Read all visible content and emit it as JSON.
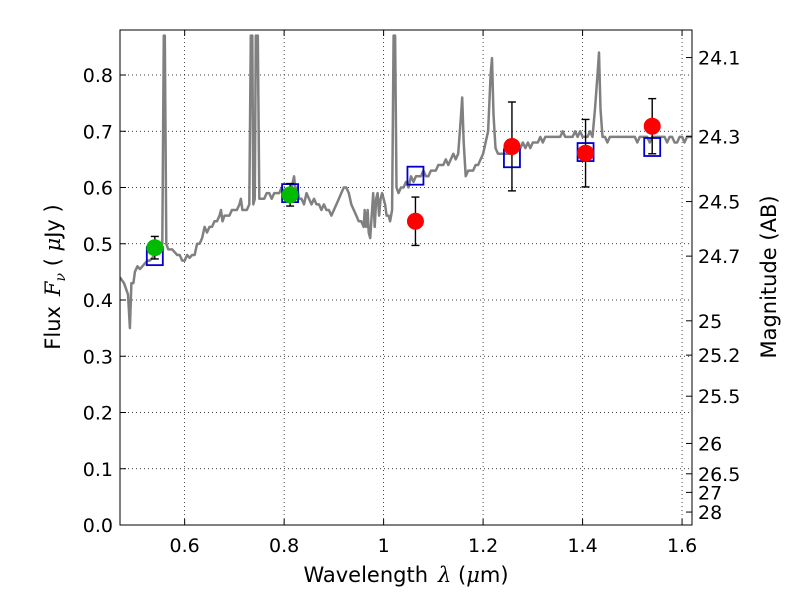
{
  "chart_data": {
    "type": "scatter",
    "xlabel_text": "Wavelength",
    "xlabel_symbol": "λ",
    "xlabel_unit_open": " (",
    "xlabel_unit_mu": "μ",
    "xlabel_unit_rest": "m)",
    "ylabel_text": "Flux",
    "ylabel_symbol": "F",
    "ylabel_sub": "ν",
    "ylabel_unit_open": " ( ",
    "ylabel_unit_mu": "μ",
    "ylabel_unit_rest": "Jy )",
    "y2label": "Magnitude (AB)",
    "xlim": [
      0.47,
      1.62
    ],
    "ylim": [
      0.0,
      0.88
    ],
    "grid": true,
    "x_ticks": [
      0.6,
      0.8,
      1.0,
      1.2,
      1.4,
      1.6
    ],
    "x_tick_labels": [
      "0.6",
      "0.8",
      "1",
      "1.2",
      "1.4",
      "1.6"
    ],
    "y_ticks": [
      0.0,
      0.1,
      0.2,
      0.3,
      0.4,
      0.5,
      0.6,
      0.7,
      0.8
    ],
    "y_tick_labels": [
      "0.0",
      "0.1",
      "0.2",
      "0.3",
      "0.4",
      "0.5",
      "0.6",
      "0.7",
      "0.8"
    ],
    "y2_ticks": [
      {
        "label": "24.1",
        "flux": 0.831
      },
      {
        "label": "24.3",
        "flux": 0.691
      },
      {
        "label": "24.5",
        "flux": 0.575
      },
      {
        "label": "24.7",
        "flux": 0.478
      },
      {
        "label": "25",
        "flux": 0.363
      },
      {
        "label": "25.2",
        "flux": 0.302
      },
      {
        "label": "25.5",
        "flux": 0.229
      },
      {
        "label": "26",
        "flux": 0.145
      },
      {
        "label": "26.5",
        "flux": 0.091
      },
      {
        "label": "27",
        "flux": 0.058
      },
      {
        "label": "28",
        "flux": 0.023
      }
    ],
    "series": [
      {
        "name": "model-spectrum",
        "kind": "line",
        "color": "#808080",
        "points": [
          [
            0.47,
            0.44
          ],
          [
            0.478,
            0.43
          ],
          [
            0.482,
            0.42
          ],
          [
            0.486,
            0.41
          ],
          [
            0.49,
            0.35
          ],
          [
            0.493,
            0.43
          ],
          [
            0.497,
            0.43
          ],
          [
            0.5,
            0.45
          ],
          [
            0.505,
            0.46
          ],
          [
            0.51,
            0.455
          ],
          [
            0.515,
            0.46
          ],
          [
            0.52,
            0.465
          ],
          [
            0.525,
            0.47
          ],
          [
            0.53,
            0.47
          ],
          [
            0.535,
            0.475
          ],
          [
            0.54,
            0.48
          ],
          [
            0.545,
            0.49
          ],
          [
            0.55,
            0.49
          ],
          [
            0.555,
            0.5
          ],
          [
            0.558,
            0.87
          ],
          [
            0.56,
            0.87
          ],
          [
            0.563,
            0.5
          ],
          [
            0.567,
            0.49
          ],
          [
            0.575,
            0.49
          ],
          [
            0.585,
            0.48
          ],
          [
            0.59,
            0.48
          ],
          [
            0.595,
            0.47
          ],
          [
            0.6,
            0.47
          ],
          [
            0.605,
            0.48
          ],
          [
            0.61,
            0.475
          ],
          [
            0.615,
            0.48
          ],
          [
            0.62,
            0.48
          ],
          [
            0.625,
            0.5
          ],
          [
            0.63,
            0.5
          ],
          [
            0.635,
            0.51
          ],
          [
            0.64,
            0.53
          ],
          [
            0.645,
            0.52
          ],
          [
            0.65,
            0.53
          ],
          [
            0.655,
            0.53
          ],
          [
            0.66,
            0.54
          ],
          [
            0.665,
            0.54
          ],
          [
            0.67,
            0.55
          ],
          [
            0.673,
            0.56
          ],
          [
            0.676,
            0.54
          ],
          [
            0.68,
            0.55
          ],
          [
            0.685,
            0.55
          ],
          [
            0.69,
            0.55
          ],
          [
            0.695,
            0.56
          ],
          [
            0.7,
            0.56
          ],
          [
            0.705,
            0.56
          ],
          [
            0.71,
            0.57
          ],
          [
            0.713,
            0.58
          ],
          [
            0.716,
            0.56
          ],
          [
            0.72,
            0.56
          ],
          [
            0.725,
            0.56
          ],
          [
            0.73,
            0.57
          ],
          [
            0.733,
            0.87
          ],
          [
            0.736,
            0.87
          ],
          [
            0.738,
            0.57
          ],
          [
            0.741,
            0.58
          ],
          [
            0.743,
            0.87
          ],
          [
            0.747,
            0.87
          ],
          [
            0.75,
            0.58
          ],
          [
            0.755,
            0.58
          ],
          [
            0.76,
            0.58
          ],
          [
            0.765,
            0.59
          ],
          [
            0.77,
            0.59
          ],
          [
            0.775,
            0.58
          ],
          [
            0.78,
            0.59
          ],
          [
            0.785,
            0.59
          ],
          [
            0.79,
            0.59
          ],
          [
            0.795,
            0.6
          ],
          [
            0.8,
            0.59
          ],
          [
            0.805,
            0.58
          ],
          [
            0.81,
            0.58
          ],
          [
            0.815,
            0.6
          ],
          [
            0.82,
            0.62
          ],
          [
            0.823,
            0.59
          ],
          [
            0.826,
            0.6
          ],
          [
            0.83,
            0.58
          ],
          [
            0.835,
            0.58
          ],
          [
            0.84,
            0.57
          ],
          [
            0.845,
            0.59
          ],
          [
            0.85,
            0.58
          ],
          [
            0.855,
            0.57
          ],
          [
            0.86,
            0.58
          ],
          [
            0.865,
            0.57
          ],
          [
            0.87,
            0.57
          ],
          [
            0.875,
            0.56
          ],
          [
            0.88,
            0.57
          ],
          [
            0.885,
            0.56
          ],
          [
            0.89,
            0.56
          ],
          [
            0.895,
            0.55
          ],
          [
            0.9,
            0.56
          ],
          [
            0.905,
            0.57
          ],
          [
            0.91,
            0.58
          ],
          [
            0.915,
            0.59
          ],
          [
            0.92,
            0.6
          ],
          [
            0.925,
            0.6
          ],
          [
            0.93,
            0.59
          ],
          [
            0.935,
            0.57
          ],
          [
            0.94,
            0.56
          ],
          [
            0.945,
            0.55
          ],
          [
            0.95,
            0.54
          ],
          [
            0.955,
            0.54
          ],
          [
            0.96,
            0.53
          ],
          [
            0.962,
            0.56
          ],
          [
            0.965,
            0.53
          ],
          [
            0.968,
            0.56
          ],
          [
            0.97,
            0.52
          ],
          [
            0.973,
            0.51
          ],
          [
            0.976,
            0.55
          ],
          [
            0.979,
            0.59
          ],
          [
            0.982,
            0.53
          ],
          [
            0.985,
            0.58
          ],
          [
            0.988,
            0.59
          ],
          [
            0.991,
            0.55
          ],
          [
            0.994,
            0.58
          ],
          [
            0.997,
            0.59
          ],
          [
            1.0,
            0.58
          ],
          [
            1.003,
            0.57
          ],
          [
            1.006,
            0.55
          ],
          [
            1.01,
            0.55
          ],
          [
            1.013,
            0.54
          ],
          [
            1.017,
            0.56
          ],
          [
            1.02,
            0.87
          ],
          [
            1.023,
            0.87
          ],
          [
            1.026,
            0.6
          ],
          [
            1.03,
            0.59
          ],
          [
            1.035,
            0.6
          ],
          [
            1.04,
            0.6
          ],
          [
            1.045,
            0.61
          ],
          [
            1.05,
            0.6
          ],
          [
            1.055,
            0.62
          ],
          [
            1.06,
            0.61
          ],
          [
            1.065,
            0.62
          ],
          [
            1.07,
            0.62
          ],
          [
            1.075,
            0.62
          ],
          [
            1.08,
            0.63
          ],
          [
            1.085,
            0.62
          ],
          [
            1.09,
            0.62
          ],
          [
            1.095,
            0.63
          ],
          [
            1.1,
            0.63
          ],
          [
            1.105,
            0.63
          ],
          [
            1.11,
            0.64
          ],
          [
            1.115,
            0.64
          ],
          [
            1.12,
            0.64
          ],
          [
            1.125,
            0.65
          ],
          [
            1.13,
            0.64
          ],
          [
            1.135,
            0.65
          ],
          [
            1.14,
            0.66
          ],
          [
            1.145,
            0.65
          ],
          [
            1.15,
            0.66
          ],
          [
            1.155,
            0.72
          ],
          [
            1.158,
            0.76
          ],
          [
            1.161,
            0.68
          ],
          [
            1.165,
            0.62
          ],
          [
            1.17,
            0.63
          ],
          [
            1.175,
            0.63
          ],
          [
            1.18,
            0.63
          ],
          [
            1.185,
            0.64
          ],
          [
            1.19,
            0.64
          ],
          [
            1.195,
            0.65
          ],
          [
            1.2,
            0.66
          ],
          [
            1.205,
            0.68
          ],
          [
            1.21,
            0.7
          ],
          [
            1.215,
            0.8
          ],
          [
            1.218,
            0.83
          ],
          [
            1.221,
            0.73
          ],
          [
            1.225,
            0.67
          ],
          [
            1.23,
            0.66
          ],
          [
            1.235,
            0.66
          ],
          [
            1.24,
            0.66
          ],
          [
            1.245,
            0.66
          ],
          [
            1.25,
            0.66
          ],
          [
            1.255,
            0.66
          ],
          [
            1.26,
            0.67
          ],
          [
            1.265,
            0.67
          ],
          [
            1.27,
            0.67
          ],
          [
            1.275,
            0.67
          ],
          [
            1.28,
            0.68
          ],
          [
            1.285,
            0.67
          ],
          [
            1.29,
            0.68
          ],
          [
            1.295,
            0.67
          ],
          [
            1.3,
            0.68
          ],
          [
            1.305,
            0.68
          ],
          [
            1.31,
            0.68
          ],
          [
            1.315,
            0.69
          ],
          [
            1.32,
            0.68
          ],
          [
            1.325,
            0.69
          ],
          [
            1.33,
            0.69
          ],
          [
            1.335,
            0.69
          ],
          [
            1.34,
            0.69
          ],
          [
            1.345,
            0.69
          ],
          [
            1.35,
            0.69
          ],
          [
            1.355,
            0.69
          ],
          [
            1.36,
            0.7
          ],
          [
            1.365,
            0.69
          ],
          [
            1.37,
            0.69
          ],
          [
            1.375,
            0.69
          ],
          [
            1.38,
            0.69
          ],
          [
            1.385,
            0.7
          ],
          [
            1.39,
            0.69
          ],
          [
            1.395,
            0.7
          ],
          [
            1.4,
            0.69
          ],
          [
            1.405,
            0.69
          ],
          [
            1.41,
            0.69
          ],
          [
            1.415,
            0.7
          ],
          [
            1.42,
            0.69
          ],
          [
            1.425,
            0.74
          ],
          [
            1.43,
            0.8
          ],
          [
            1.433,
            0.84
          ],
          [
            1.436,
            0.74
          ],
          [
            1.44,
            0.69
          ],
          [
            1.445,
            0.69
          ],
          [
            1.45,
            0.68
          ],
          [
            1.455,
            0.69
          ],
          [
            1.46,
            0.69
          ],
          [
            1.465,
            0.69
          ],
          [
            1.47,
            0.69
          ],
          [
            1.475,
            0.69
          ],
          [
            1.48,
            0.69
          ],
          [
            1.485,
            0.69
          ],
          [
            1.49,
            0.69
          ],
          [
            1.495,
            0.69
          ],
          [
            1.5,
            0.69
          ],
          [
            1.505,
            0.69
          ],
          [
            1.51,
            0.68
          ],
          [
            1.515,
            0.69
          ],
          [
            1.52,
            0.69
          ],
          [
            1.525,
            0.69
          ],
          [
            1.53,
            0.69
          ],
          [
            1.535,
            0.68
          ],
          [
            1.54,
            0.69
          ],
          [
            1.545,
            0.69
          ],
          [
            1.55,
            0.69
          ],
          [
            1.555,
            0.69
          ],
          [
            1.56,
            0.69
          ],
          [
            1.565,
            0.69
          ],
          [
            1.57,
            0.68
          ],
          [
            1.575,
            0.69
          ],
          [
            1.58,
            0.69
          ],
          [
            1.585,
            0.68
          ],
          [
            1.59,
            0.68
          ],
          [
            1.595,
            0.69
          ],
          [
            1.6,
            0.69
          ],
          [
            1.605,
            0.68
          ],
          [
            1.61,
            0.69
          ],
          [
            1.615,
            0.69
          ],
          [
            1.62,
            0.69
          ]
        ]
      },
      {
        "name": "model-photometry",
        "kind": "open-squares",
        "color": "#0000cc",
        "points": [
          [
            0.54,
            0.478
          ],
          [
            0.812,
            0.59
          ],
          [
            1.064,
            0.621
          ],
          [
            1.258,
            0.652
          ],
          [
            1.406,
            0.663
          ],
          [
            1.54,
            0.672
          ]
        ]
      },
      {
        "name": "observed-optical",
        "kind": "filled-circles-errorbars",
        "color": "#00bb00",
        "points": [
          [
            0.54,
            0.493,
            0.02
          ],
          [
            0.812,
            0.587,
            0.02
          ]
        ]
      },
      {
        "name": "observed-nir",
        "kind": "filled-circles-errorbars",
        "color": "#ff0000",
        "points": [
          [
            1.064,
            0.54,
            0.043
          ],
          [
            1.258,
            0.673,
            0.079
          ],
          [
            1.406,
            0.661,
            0.06
          ],
          [
            1.54,
            0.709,
            0.049
          ]
        ]
      }
    ]
  }
}
